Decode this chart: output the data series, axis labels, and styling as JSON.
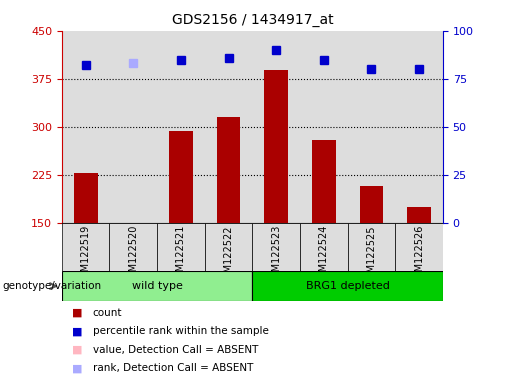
{
  "title": "GDS2156 / 1434917_at",
  "samples": [
    "GSM122519",
    "GSM122520",
    "GSM122521",
    "GSM122522",
    "GSM122523",
    "GSM122524",
    "GSM122525",
    "GSM122526"
  ],
  "count_values": [
    228,
    148,
    293,
    315,
    388,
    280,
    207,
    175
  ],
  "count_absent": [
    false,
    true,
    false,
    false,
    false,
    false,
    false,
    false
  ],
  "rank_values": [
    82,
    83,
    85,
    86,
    90,
    85,
    80,
    80
  ],
  "rank_absent": [
    false,
    true,
    false,
    false,
    false,
    false,
    false,
    false
  ],
  "ylim_left": [
    150,
    450
  ],
  "ylim_right": [
    0,
    100
  ],
  "yticks_left": [
    150,
    225,
    300,
    375,
    450
  ],
  "yticks_right": [
    0,
    25,
    50,
    75,
    100
  ],
  "groups": [
    {
      "label": "wild type",
      "indices": [
        0,
        1,
        2,
        3
      ],
      "color": "#90EE90"
    },
    {
      "label": "BRG1 depleted",
      "indices": [
        4,
        5,
        6,
        7
      ],
      "color": "#00CC00"
    }
  ],
  "bar_color_present": "#AA0000",
  "bar_color_absent": "#FFB6C1",
  "dot_color_present": "#0000CC",
  "dot_color_absent": "#AAAAFF",
  "bg_color": "#DDDDDD",
  "left_axis_color": "#CC0000",
  "right_axis_color": "#0000CC",
  "legend_items": [
    {
      "label": "count",
      "color": "#AA0000"
    },
    {
      "label": "percentile rank within the sample",
      "color": "#0000CC"
    },
    {
      "label": "value, Detection Call = ABSENT",
      "color": "#FFB6C1"
    },
    {
      "label": "rank, Detection Call = ABSENT",
      "color": "#AAAAFF"
    }
  ],
  "genotype_label": "genotype/variation"
}
